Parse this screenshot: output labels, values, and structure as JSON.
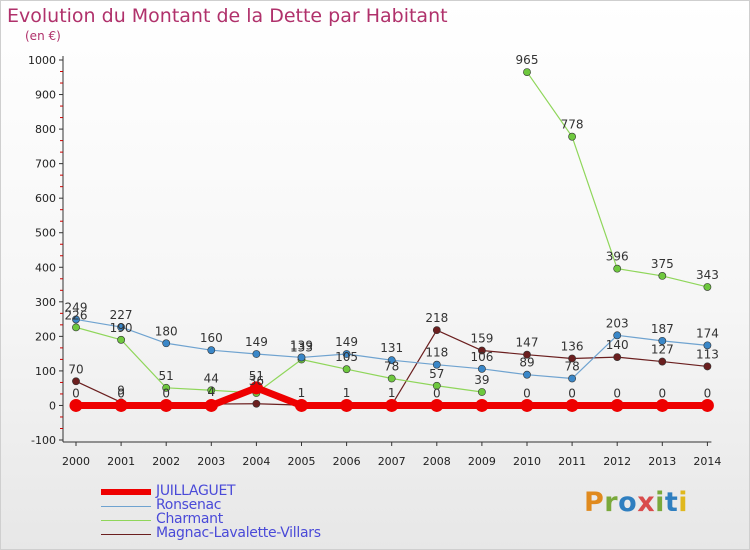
{
  "title": "Evolution du Montant de la Dette par Habitant",
  "subtitle": "(en €)",
  "logo": {
    "text": "Proxiti",
    "colors": [
      "#e08a1e",
      "#7aa93b",
      "#2f7fc0",
      "#d94c4c",
      "#7aa93b",
      "#2f7fc0",
      "#e0b81e"
    ]
  },
  "colors": {
    "title": "#b0316b",
    "axis": "#333333",
    "tick_red": "#cc0000"
  },
  "chart_data": {
    "type": "line",
    "x": [
      "2000",
      "2001",
      "2002",
      "2003",
      "2004",
      "2005",
      "2006",
      "2007",
      "2008",
      "2009",
      "2010",
      "2011",
      "2012",
      "2013",
      "2014"
    ],
    "ylim": [
      -100,
      1000
    ],
    "yticks": [
      -100,
      0,
      100,
      200,
      300,
      400,
      500,
      600,
      700,
      800,
      900,
      1000
    ],
    "grid": false,
    "legend_position": "bottom-left",
    "series": [
      {
        "name": "Magnac-Lavalette-Villars",
        "color": "#6b1f1f",
        "width": 1.2,
        "marker_color": "#6b1f1f",
        "values": [
          70,
          9,
          0,
          4,
          5,
          1,
          1,
          1,
          218,
          159,
          147,
          136,
          140,
          127,
          113
        ]
      },
      {
        "name": "Charmant",
        "color": "#8fd65a",
        "width": 1.2,
        "marker_color": "#6ec83e",
        "values": [
          226,
          190,
          51,
          44,
          36,
          133,
          105,
          78,
          57,
          39,
          965,
          778,
          396,
          375,
          343
        ],
        "missing_from": 9,
        "missing_to": 10
      },
      {
        "name": "Ronsenac",
        "color": "#6fa3d0",
        "width": 1.2,
        "marker_color": "#3a87c8",
        "values": [
          249,
          227,
          180,
          160,
          149,
          139,
          149,
          131,
          118,
          106,
          89,
          78,
          203,
          187,
          174
        ]
      },
      {
        "name": "JUILLAGUET",
        "color": "#ee0000",
        "width": 7,
        "marker_color": "#ee0000",
        "values": [
          0,
          0,
          0,
          0,
          51,
          0,
          0,
          0,
          0,
          0,
          0,
          0,
          0,
          0,
          0
        ]
      }
    ],
    "data_labels": [
      {
        "text": "249",
        "x": "2000",
        "y": 249
      },
      {
        "text": "226",
        "x": "2000",
        "y": 226
      },
      {
        "text": "70",
        "x": "2000",
        "y": 70
      },
      {
        "text": "0",
        "x": "2000",
        "y": 0
      },
      {
        "text": "227",
        "x": "2001",
        "y": 227
      },
      {
        "text": "190",
        "x": "2001",
        "y": 190
      },
      {
        "text": "9",
        "x": "2001",
        "y": 9
      },
      {
        "text": "0",
        "x": "2001",
        "y": 0
      },
      {
        "text": "180",
        "x": "2002",
        "y": 180
      },
      {
        "text": "51",
        "x": "2002",
        "y": 51
      },
      {
        "text": "0",
        "x": "2002",
        "y": 0
      },
      {
        "text": "160",
        "x": "2003",
        "y": 160
      },
      {
        "text": "44",
        "x": "2003",
        "y": 44
      },
      {
        "text": "4",
        "x": "2003",
        "y": 4
      },
      {
        "text": "149",
        "x": "2004",
        "y": 149
      },
      {
        "text": "51",
        "x": "2004",
        "y": 51
      },
      {
        "text": "36",
        "x": "2004",
        "y": 36
      },
      {
        "text": "139",
        "x": "2005",
        "y": 139
      },
      {
        "text": "133",
        "x": "2005",
        "y": 133
      },
      {
        "text": "1",
        "x": "2005",
        "y": 1
      },
      {
        "text": "149",
        "x": "2006",
        "y": 149
      },
      {
        "text": "105",
        "x": "2006",
        "y": 105
      },
      {
        "text": "1",
        "x": "2006",
        "y": 1
      },
      {
        "text": "131",
        "x": "2007",
        "y": 131
      },
      {
        "text": "78",
        "x": "2007",
        "y": 78
      },
      {
        "text": "1",
        "x": "2007",
        "y": 1
      },
      {
        "text": "218",
        "x": "2008",
        "y": 218
      },
      {
        "text": "118",
        "x": "2008",
        "y": 118
      },
      {
        "text": "57",
        "x": "2008",
        "y": 57
      },
      {
        "text": "0",
        "x": "2008",
        "y": 0
      },
      {
        "text": "159",
        "x": "2009",
        "y": 159
      },
      {
        "text": "106",
        "x": "2009",
        "y": 106
      },
      {
        "text": "39",
        "x": "2009",
        "y": 39
      },
      {
        "text": "965",
        "x": "2010",
        "y": 965
      },
      {
        "text": "147",
        "x": "2010",
        "y": 147
      },
      {
        "text": "89",
        "x": "2010",
        "y": 89
      },
      {
        "text": "0",
        "x": "2010",
        "y": 0
      },
      {
        "text": "778",
        "x": "2011",
        "y": 778
      },
      {
        "text": "136",
        "x": "2011",
        "y": 136
      },
      {
        "text": "78",
        "x": "2011",
        "y": 78
      },
      {
        "text": "0",
        "x": "2011",
        "y": 0
      },
      {
        "text": "396",
        "x": "2012",
        "y": 396
      },
      {
        "text": "203",
        "x": "2012",
        "y": 203
      },
      {
        "text": "140",
        "x": "2012",
        "y": 140
      },
      {
        "text": "0",
        "x": "2012",
        "y": 0
      },
      {
        "text": "375",
        "x": "2013",
        "y": 375
      },
      {
        "text": "187",
        "x": "2013",
        "y": 187
      },
      {
        "text": "127",
        "x": "2013",
        "y": 127
      },
      {
        "text": "0",
        "x": "2013",
        "y": 0
      },
      {
        "text": "343",
        "x": "2014",
        "y": 343
      },
      {
        "text": "174",
        "x": "2014",
        "y": 174
      },
      {
        "text": "113",
        "x": "2014",
        "y": 113
      },
      {
        "text": "0",
        "x": "2014",
        "y": 0
      }
    ],
    "legend": [
      {
        "label": "JUILLAGUET",
        "color": "#ee0000",
        "text_color": "#4a4ad8"
      },
      {
        "label": "Ronsenac",
        "color": "#6fa3d0",
        "text_color": "#4a4ad8"
      },
      {
        "label": "Charmant",
        "color": "#8fd65a",
        "text_color": "#4a4ad8"
      },
      {
        "label": "Magnac-Lavalette-Villars",
        "color": "#6b1f1f",
        "text_color": "#4a4ad8"
      }
    ]
  }
}
